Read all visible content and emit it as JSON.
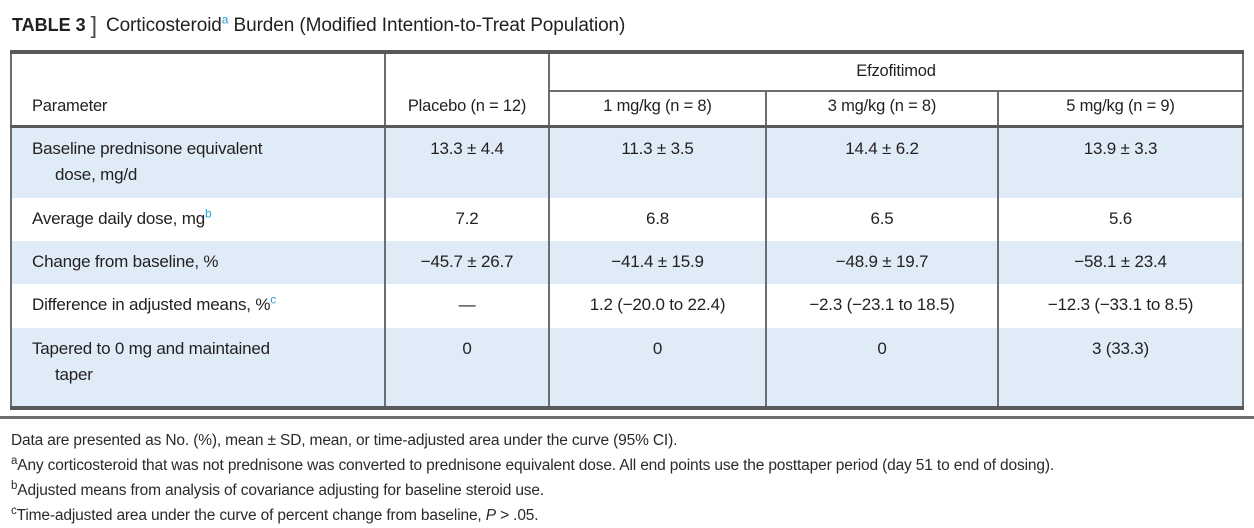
{
  "colors": {
    "accent_blue": "#2b9cd8",
    "row_blue": "#dfecf8",
    "rule_dark": "#58595b",
    "rule_mid": "#6d6e71",
    "text": "#231f20"
  },
  "title": {
    "label": "TABLE 3",
    "bracket": "]",
    "text_pre": "Corticosteroid",
    "sup": "a",
    "text_post": " Burden (Modified Intention-to-Treat Population)"
  },
  "table": {
    "group_header": "Efzofitimod",
    "columns": {
      "parameter": "Parameter",
      "placebo": "Placebo (n = 12)",
      "dose1": "1 mg/kg (n = 8)",
      "dose2": "3 mg/kg (n = 8)",
      "dose3": "5 mg/kg (n = 9)"
    },
    "rows": [
      {
        "param": "Baseline prednisone equivalent\ndose, mg/d",
        "sup": "",
        "values": [
          "13.3 ± 4.4",
          "11.3 ± 3.5",
          "14.4 ± 6.2",
          "13.9 ± 3.3"
        ]
      },
      {
        "param": "Average daily dose, mg",
        "sup": "b",
        "values": [
          "7.2",
          "6.8",
          "6.5",
          "5.6"
        ]
      },
      {
        "param": "Change from baseline, %",
        "sup": "",
        "values": [
          "−45.7 ± 26.7",
          "−41.4 ± 15.9",
          "−48.9 ± 19.7",
          "−58.1 ± 23.4"
        ]
      },
      {
        "param": "Difference in adjusted means, %",
        "sup": "c",
        "values": [
          "—",
          "1.2 (−20.0 to 22.4)",
          "−2.3 (−23.1 to 18.5)",
          "−12.3 (−33.1 to 8.5)"
        ]
      },
      {
        "param": "Tapered to 0 mg and maintained\ntaper",
        "sup": "",
        "values": [
          "0",
          "0",
          "0",
          "3 (33.3)"
        ]
      }
    ]
  },
  "footnotes": {
    "intro": "Data are presented as No. (%), mean ± SD, mean, or time-adjusted area under the curve (95% CI).",
    "notes": [
      {
        "sup": "a",
        "text": "Any corticosteroid that was not prednisone was converted to prednisone equivalent dose. All end points use the posttaper period (day 51 to end of dosing)."
      },
      {
        "sup": "b",
        "text": "Adjusted means from analysis of covariance adjusting for baseline steroid use."
      },
      {
        "sup": "c",
        "text": "Time-adjusted area under the curve of percent change from baseline, ",
        "italic": "P",
        "text_post": " > .05."
      }
    ]
  }
}
